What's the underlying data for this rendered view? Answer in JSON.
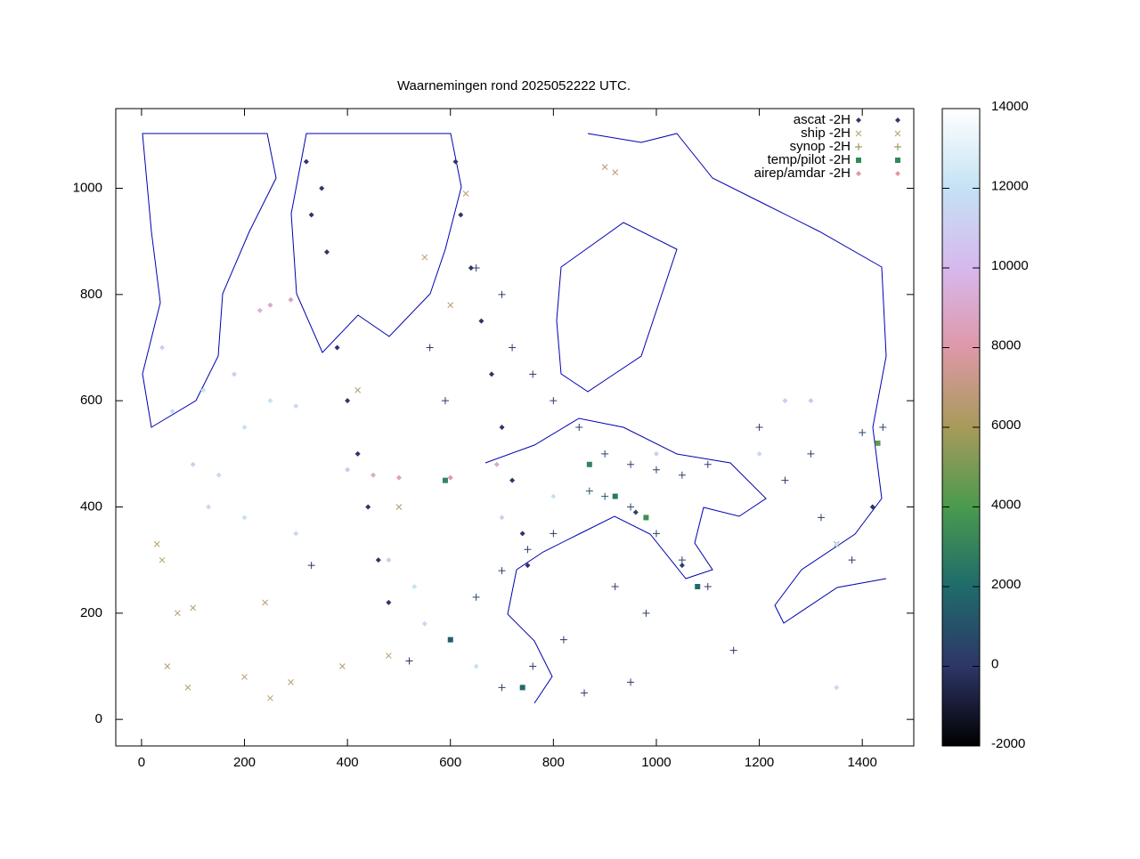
{
  "chart_data": {
    "type": "scatter",
    "title": "Waarnemingen rond 2025052222 UTC.",
    "xlim": [
      -50,
      1500
    ],
    "ylim": [
      -50,
      1150
    ],
    "xticks": [
      0,
      200,
      400,
      600,
      800,
      1000,
      1200,
      1400
    ],
    "yticks": [
      0,
      200,
      400,
      600,
      800,
      1000
    ],
    "cblim": [
      -2000,
      14000
    ],
    "cbticks": [
      -2000,
      0,
      2000,
      4000,
      6000,
      8000,
      10000,
      12000,
      14000
    ],
    "colormap": [
      "#000000",
      "#2e3668",
      "#1f6b6b",
      "#4a9a4e",
      "#a89a5a",
      "#de98a8",
      "#d7b8ee",
      "#c4e2f4",
      "#ffffff"
    ],
    "legend": "top-right",
    "series": [
      {
        "name": "ascat -2H",
        "symbol": "dot",
        "color": "#2e3668",
        "x": [
          320,
          350,
          330,
          360,
          380,
          400,
          420,
          440,
          460,
          480,
          610,
          620,
          640,
          660,
          680,
          700,
          720,
          740,
          750,
          960,
          1050,
          1420
        ],
        "y": [
          1050,
          1000,
          950,
          880,
          700,
          600,
          500,
          400,
          300,
          220,
          1050,
          950,
          850,
          750,
          650,
          550,
          450,
          350,
          290,
          390,
          290,
          400
        ],
        "z": [
          0,
          0,
          0,
          0,
          0,
          0,
          0,
          0,
          0,
          0,
          0,
          0,
          0,
          0,
          0,
          0,
          0,
          0,
          0,
          500,
          300,
          0
        ]
      },
      {
        "name": "ship -2H",
        "symbol": "x",
        "color": "#b5a06a",
        "x": [
          30,
          40,
          70,
          100,
          50,
          90,
          200,
          240,
          250,
          290,
          390,
          480,
          500,
          420,
          550,
          600,
          630,
          900,
          920,
          1350
        ],
        "y": [
          330,
          300,
          200,
          210,
          100,
          60,
          80,
          220,
          40,
          70,
          100,
          120,
          400,
          620,
          870,
          780,
          990,
          1040,
          1030,
          330
        ],
        "z": [
          6500,
          6500,
          6500,
          6500,
          6500,
          6500,
          6500,
          6500,
          6500,
          6500,
          6500,
          6500,
          6500,
          6500,
          6500,
          6500,
          6500,
          6500,
          6500,
          6500
        ]
      },
      {
        "name": "synop -2H",
        "symbol": "plus",
        "color": "#8a8a3a",
        "x": [
          650,
          700,
          720,
          760,
          800,
          850,
          900,
          950,
          1000,
          1050,
          1100,
          1200,
          1300,
          1400,
          870,
          900,
          950,
          1000,
          1050,
          1100,
          1150,
          820,
          760,
          700,
          650,
          700,
          750,
          800,
          1250,
          1320,
          1380,
          1440,
          920,
          980,
          860,
          950,
          330,
          520,
          590,
          560
        ],
        "y": [
          850,
          800,
          700,
          650,
          600,
          550,
          500,
          480,
          470,
          460,
          480,
          550,
          500,
          540,
          430,
          420,
          400,
          350,
          300,
          250,
          130,
          150,
          100,
          60,
          230,
          280,
          320,
          350,
          450,
          380,
          300,
          550,
          250,
          200,
          50,
          70,
          290,
          110,
          600,
          700
        ],
        "z": [
          200,
          300,
          200,
          100,
          200,
          300,
          400,
          300,
          500,
          400,
          300,
          200,
          300,
          500,
          1500,
          1200,
          800,
          400,
          300,
          200,
          100,
          100,
          200,
          300,
          600,
          500,
          400,
          300,
          200,
          300,
          100,
          400,
          200,
          300,
          100,
          100,
          0,
          0,
          100,
          200
        ]
      },
      {
        "name": "temp/pilot -2H",
        "symbol": "square",
        "color": "#2e8b57",
        "x": [
          870,
          920,
          1080,
          980,
          1430,
          740,
          600,
          590
        ],
        "y": [
          480,
          420,
          250,
          380,
          520,
          60,
          150,
          450
        ],
        "z": [
          3000,
          2500,
          2000,
          3500,
          4500,
          2000,
          1500,
          3000
        ]
      },
      {
        "name": "airep/amdar -2H",
        "symbol": "dot",
        "color": "#de98a8",
        "x": [
          250,
          230,
          290,
          400,
          450,
          500,
          600,
          690,
          100,
          150,
          200,
          250,
          300,
          180,
          120,
          60,
          40,
          130,
          200,
          300,
          480,
          530,
          550,
          650,
          700,
          800,
          1000,
          1200,
          1350,
          1350,
          1250,
          1300
        ],
        "y": [
          780,
          770,
          790,
          470,
          460,
          455,
          455,
          480,
          480,
          460,
          550,
          600,
          590,
          650,
          620,
          580,
          700,
          400,
          380,
          350,
          300,
          250,
          180,
          100,
          380,
          420,
          500,
          500,
          330,
          60,
          600,
          600
        ],
        "z": [
          9000,
          9500,
          8500,
          10500,
          9000,
          8500,
          8000,
          9000,
          11000,
          11500,
          12000,
          12000,
          11500,
          11000,
          12000,
          11500,
          11000,
          11500,
          12000,
          11500,
          11000,
          12000,
          11500,
          12000,
          11000,
          12000,
          11000,
          11500,
          12000,
          11500,
          11000,
          10500
        ]
      }
    ]
  }
}
